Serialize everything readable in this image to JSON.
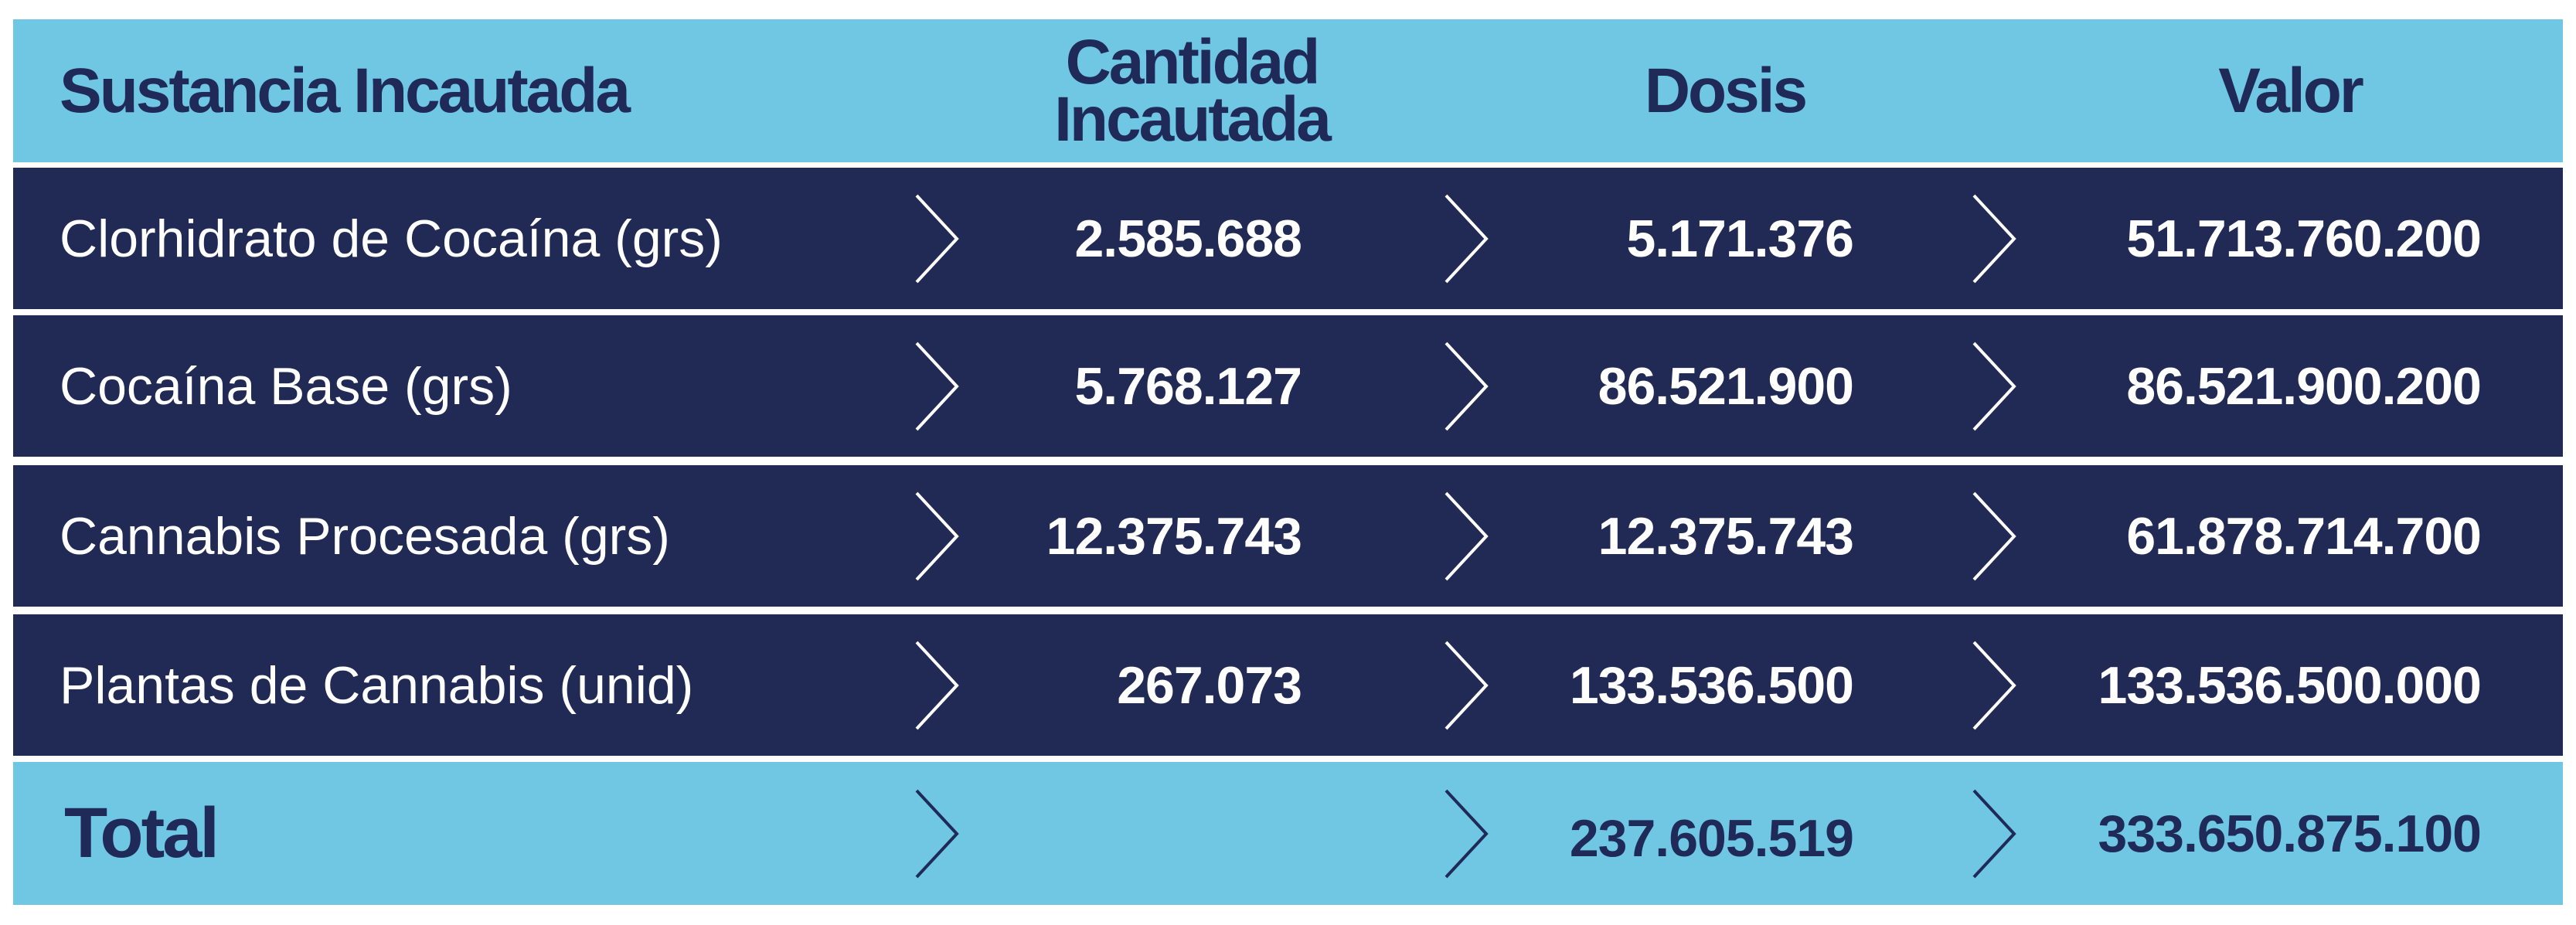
{
  "header": [
    "Sustancia Incautada",
    "Cantidad Incautada",
    "Dosis",
    "Valor"
  ],
  "rows": [
    [
      "Clorhidrato de Cocaína (grs)",
      "2.585.688",
      "5.171.376",
      "51.713.760.200"
    ],
    [
      "Cocaína Base (grs)",
      "5.768.127",
      "86.521.900",
      "86.521.900.200"
    ],
    [
      "Cannabis Procesada (grs)",
      "12.375.743",
      "12.375.743",
      "61.878.714.700"
    ],
    [
      "Plantas de Cannabis (unid)",
      "267.073",
      "133.536.500",
      "133.536.500.000"
    ]
  ],
  "total": {
    "label": "Total",
    "dosis": "237.605.519",
    "valor": "333.650.875.100"
  }
}
